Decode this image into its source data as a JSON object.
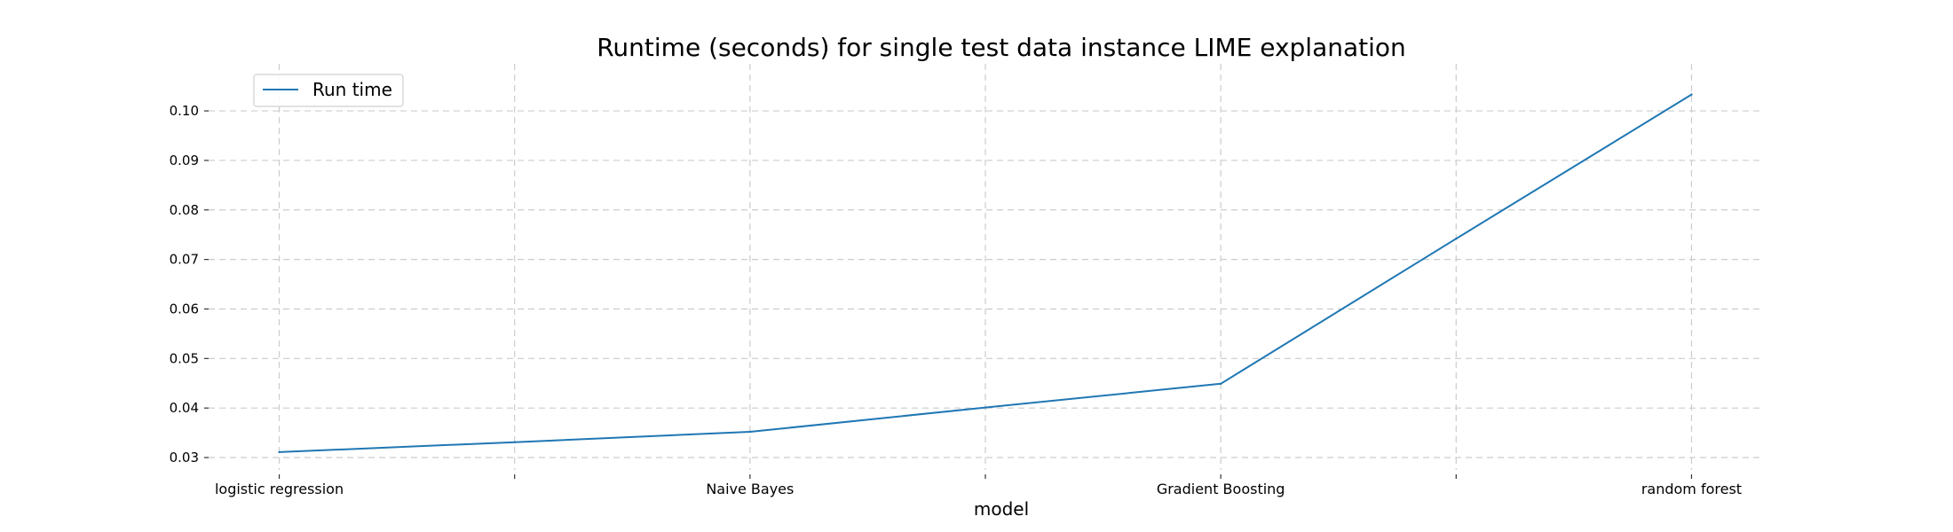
{
  "chart_data": {
    "type": "line",
    "title": "Runtime (seconds) for single test data instance LIME explanation",
    "xlabel": "model",
    "ylabel": "",
    "x": [
      0,
      1,
      2,
      3,
      4,
      5,
      6
    ],
    "x_tick_labels": [
      {
        "x": 0,
        "label": "logistic regression"
      },
      {
        "x": 1,
        "label": ""
      },
      {
        "x": 2,
        "label": "Naive Bayes"
      },
      {
        "x": 3,
        "label": ""
      },
      {
        "x": 4,
        "label": "Gradient Boosting"
      },
      {
        "x": 5,
        "label": ""
      },
      {
        "x": 6,
        "label": "random forest"
      }
    ],
    "yticks": [
      "0.03",
      "0.04",
      "0.05",
      "0.06",
      "0.07",
      "0.08",
      "0.09",
      "0.10"
    ],
    "ylim": [
      0.0275,
      0.1095
    ],
    "xlim": [
      -0.3,
      6.3
    ],
    "grid": true,
    "legend_position": "top-left",
    "series": [
      {
        "name": "Run time",
        "color": "#1f77b4",
        "values": [
          0.0311,
          0.0331,
          0.0352,
          0.0401,
          0.0449,
          0.0742,
          0.1033
        ]
      }
    ]
  }
}
